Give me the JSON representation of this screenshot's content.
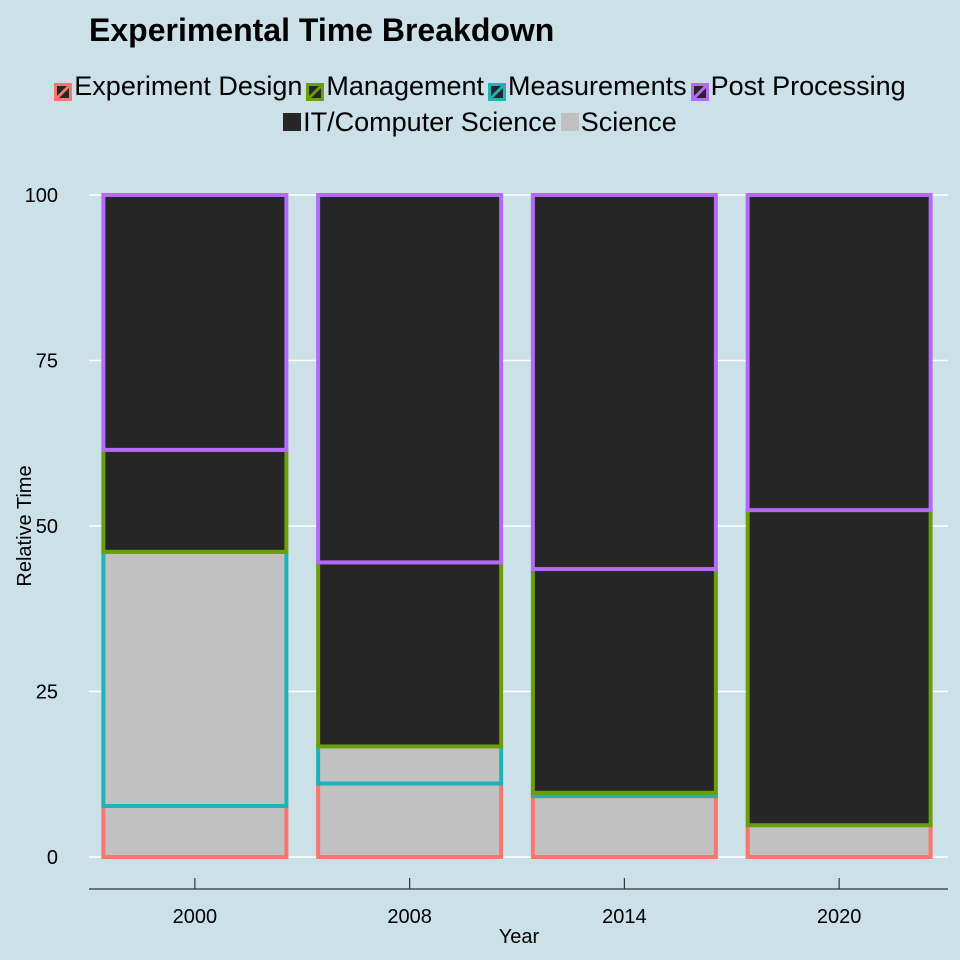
{
  "chart_data": {
    "type": "bar",
    "stacked": true,
    "title": "Experimental Time Breakdown",
    "xlabel": "Year",
    "ylabel": "Relative Time",
    "ylim": [
      0,
      100
    ],
    "yticks": [
      0,
      25,
      50,
      75,
      100
    ],
    "categories": [
      "2000",
      "2008",
      "2014",
      "2020"
    ],
    "grid": "horizontal",
    "legend_position": "top",
    "outline_legend": [
      {
        "name": "Experiment Design",
        "color": "#F8766D"
      },
      {
        "name": "Management",
        "color": "#6B9E0A"
      },
      {
        "name": "Measurements",
        "color": "#1FB2B8"
      },
      {
        "name": "Post Processing",
        "color": "#B56AF7"
      }
    ],
    "fill_legend": [
      {
        "name": "IT/Computer Science",
        "color": "#262626"
      },
      {
        "name": "Science",
        "color": "#C1C1C1"
      }
    ],
    "series": [
      {
        "name": "Experiment Design",
        "outline": "#F8766D",
        "fill": [
          "Science",
          "Science",
          "Science",
          "Science"
        ],
        "values": [
          7.7,
          11.1,
          9.2,
          4.8
        ]
      },
      {
        "name": "Measurements",
        "outline": "#1FB2B8",
        "fill": [
          "Science",
          "Science",
          "Science",
          "Science"
        ],
        "values": [
          38.4,
          5.6,
          0.5,
          0
        ]
      },
      {
        "name": "Management",
        "outline": "#6B9E0A",
        "fill": [
          "IT/Computer Science",
          "IT/Computer Science",
          "IT/Computer Science",
          "IT/Computer Science"
        ],
        "values": [
          15.4,
          27.8,
          33.8,
          47.6
        ]
      },
      {
        "name": "Post Processing",
        "outline": "#B56AF7",
        "fill": [
          "IT/Computer Science",
          "IT/Computer Science",
          "IT/Computer Science",
          "IT/Computer Science"
        ],
        "values": [
          38.5,
          55.5,
          56.5,
          47.6
        ]
      }
    ]
  }
}
